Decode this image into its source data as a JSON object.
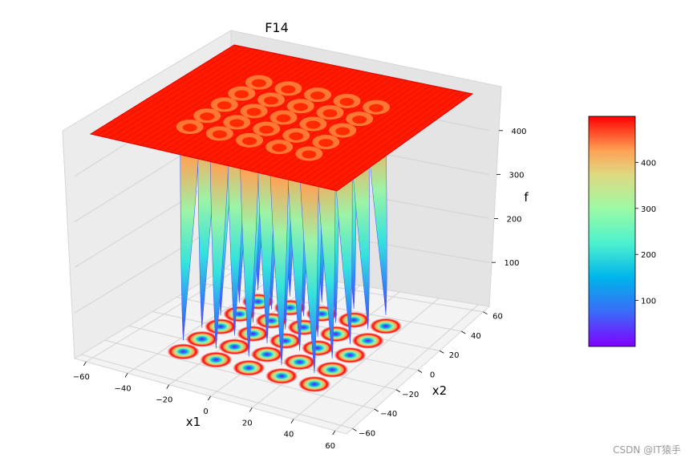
{
  "chart_data": {
    "type": "surface3d",
    "title": "F14",
    "xlabel": "x1",
    "ylabel": "x2",
    "zlabel": "f",
    "colormap": "rainbow",
    "x_ticks": [
      "−60",
      "−40",
      "−20",
      "0",
      "20",
      "40",
      "60"
    ],
    "y_ticks": [
      "−60",
      "−40",
      "−20",
      "0",
      "20",
      "40",
      "60"
    ],
    "z_ticks": [
      "100",
      "200",
      "300",
      "400"
    ],
    "xlim": [
      -65.536,
      65.536
    ],
    "ylim": [
      -65.536,
      65.536
    ],
    "zlim": [
      0,
      500
    ],
    "wells_grid": [
      -32,
      -16,
      0,
      16,
      32
    ],
    "colorbar": {
      "ticks": [
        "100",
        "200",
        "300",
        "400"
      ],
      "range": [
        0,
        500
      ]
    },
    "grid": true
  },
  "watermark": "CSDN @IT猿手",
  "colors": {
    "surface_top": "#ff1a00",
    "pane": "#f2f2f2",
    "grid": "#d0d0d0"
  }
}
